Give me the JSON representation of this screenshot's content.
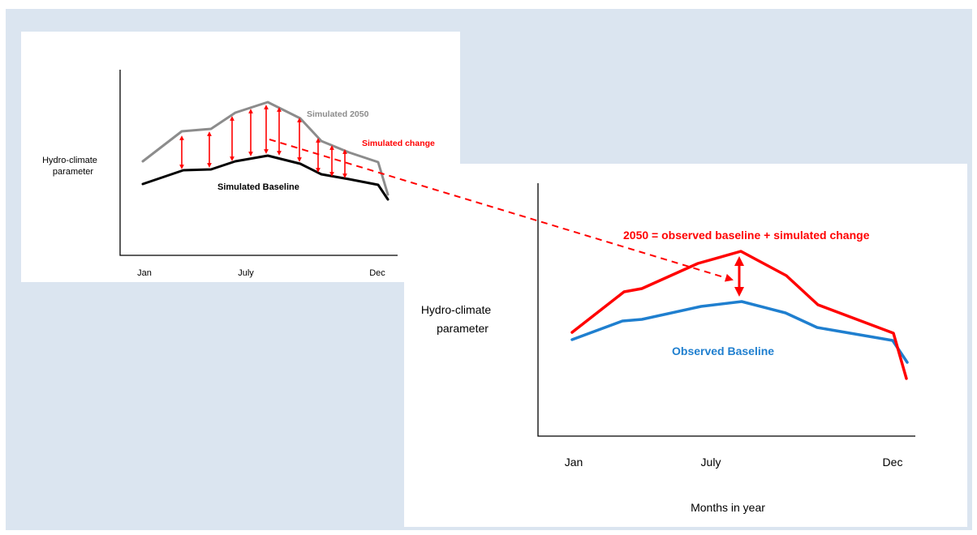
{
  "colors": {
    "background": "#dbe5f0",
    "simulated_baseline": "#000000",
    "simulated_2050": "#8c8c8c",
    "change": "#ff0000",
    "observed_baseline": "#1f7fcf",
    "projected_2050": "#ff0000"
  },
  "left_chart": {
    "ylabel_line1": "Hydro-climate",
    "ylabel_line2": "parameter",
    "ticks": [
      "Jan",
      "July",
      "Dec"
    ],
    "label_2050": "Simulated 2050",
    "label_change": "Simulated change",
    "label_baseline": "Simulated Baseline"
  },
  "right_chart": {
    "ylabel_line1": "Hydro-climate",
    "ylabel_line2": "parameter",
    "ticks": [
      "Jan",
      "July",
      "Dec"
    ],
    "xlabel": "Months in year",
    "label_2050": "2050 = observed baseline + simulated change",
    "label_baseline": "Observed Baseline"
  },
  "chart_data": [
    {
      "type": "line",
      "x_ticks": [
        "Jan",
        "July",
        "Dec"
      ],
      "ylabel": "Hydro-climate parameter",
      "series": [
        {
          "name": "Simulated 2050",
          "values": [
            0.45,
            0.62,
            0.63,
            0.72,
            0.76,
            0.67,
            0.55,
            0.5,
            0.44,
            0.18
          ]
        },
        {
          "name": "Simulated Baseline",
          "values": [
            0.32,
            0.4,
            0.4,
            0.44,
            0.46,
            0.42,
            0.36,
            0.34,
            0.31,
            0.16
          ]
        }
      ]
    },
    {
      "type": "line",
      "x_ticks": [
        "Jan",
        "July",
        "Dec"
      ],
      "xlabel": "Months in year",
      "ylabel": "Hydro-climate parameter",
      "series": [
        {
          "name": "2050 = observed baseline + simulated change",
          "values": [
            0.45,
            0.62,
            0.64,
            0.72,
            0.77,
            0.68,
            0.55,
            0.5,
            0.45,
            0.24
          ]
        },
        {
          "name": "Observed Baseline",
          "values": [
            0.42,
            0.5,
            0.51,
            0.55,
            0.58,
            0.54,
            0.48,
            0.46,
            0.43,
            0.34
          ]
        }
      ]
    }
  ]
}
